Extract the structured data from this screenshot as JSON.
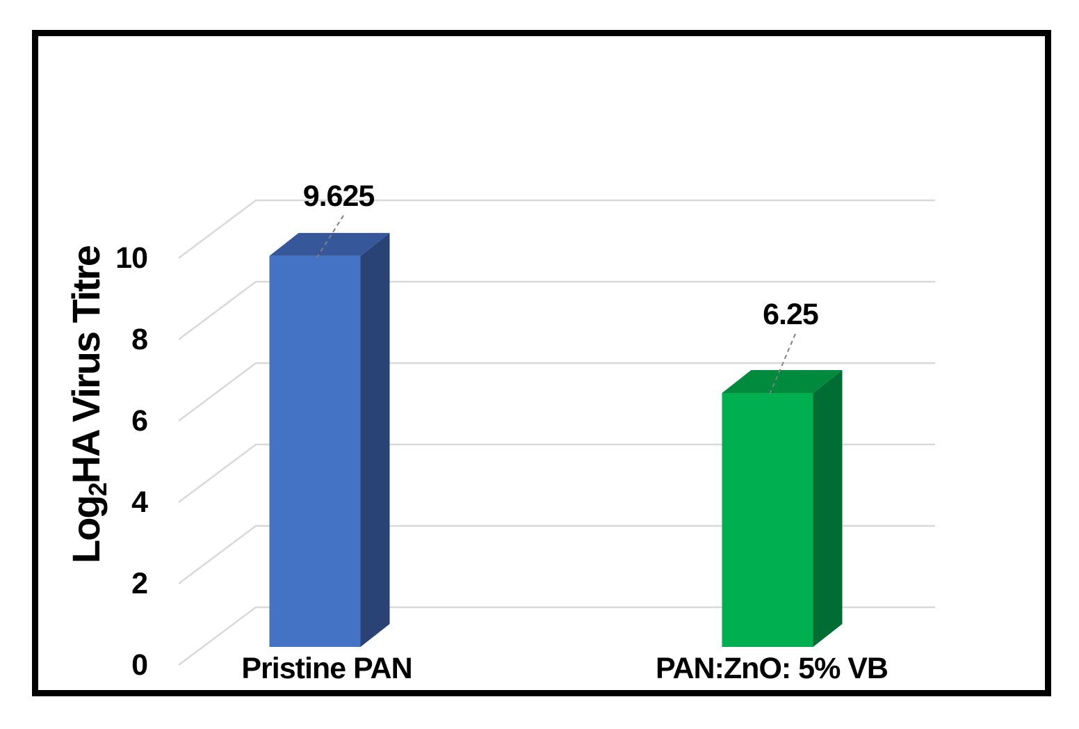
{
  "chart_data": {
    "type": "bar",
    "projection": "3d",
    "title": "",
    "categories": [
      "Pristine PAN",
      "PAN:ZnO: 5% VB"
    ],
    "values": [
      9.625,
      6.25
    ],
    "data_labels": [
      "9.625",
      "6.25"
    ],
    "ylabel": "Log2HA Virus Titre",
    "ylabel_parts": {
      "prefix": "Log",
      "subscript": "2",
      "suffix": "HA Virus Titre"
    },
    "xlabel": "",
    "yticks": [
      0,
      2,
      4,
      6,
      8,
      10
    ],
    "ylim": [
      0,
      10
    ],
    "grid": true,
    "legend": false,
    "bar_colors": [
      {
        "front": "#4472C4",
        "top": "#36589B",
        "side": "#2A4377"
      },
      {
        "front": "#00B050",
        "top": "#008A3E",
        "side": "#006D33"
      }
    ]
  },
  "colors": {
    "background": "#FFFFFF",
    "frame_border": "#000000",
    "gridline": "#D9D9D9",
    "leader_line": "#7F7F7F",
    "text": "#000000"
  }
}
